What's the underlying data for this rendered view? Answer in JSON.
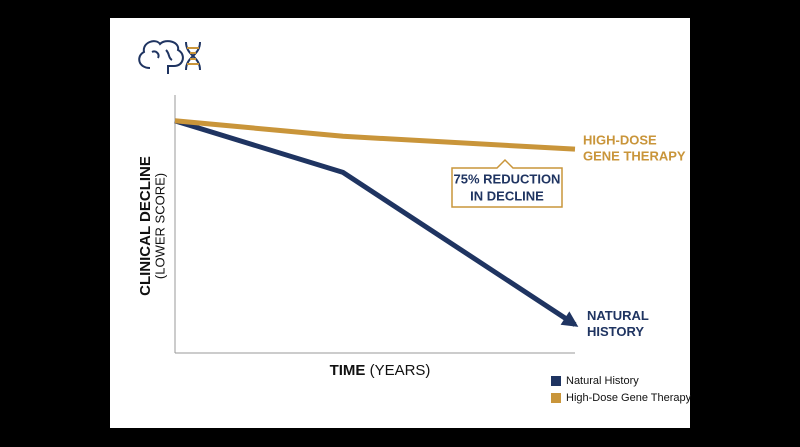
{
  "chart_data": {
    "type": "line",
    "x_label": [
      "TIME",
      "(YEARS)"
    ],
    "y_label": [
      "CLINICAL DECLINE",
      "(LOWER SCORE)"
    ],
    "x": [
      0,
      4.2,
      10
    ],
    "xlim": [
      0,
      10
    ],
    "ylim": [
      0,
      100
    ],
    "series": [
      {
        "name": "Natural History",
        "color": "#1f3461",
        "values": [
          90,
          70,
          11
        ],
        "end_label": [
          "NATURAL",
          "HISTORY"
        ]
      },
      {
        "name": "High-Dose Gene Therapy",
        "color": "#c9953a",
        "values": [
          90,
          84,
          79
        ],
        "end_label": [
          "HIGH-DOSE",
          "GENE THERAPY"
        ]
      }
    ],
    "annotation": [
      "75% REDUCTION",
      "IN DECLINE"
    ],
    "legend": "bottom-right"
  }
}
